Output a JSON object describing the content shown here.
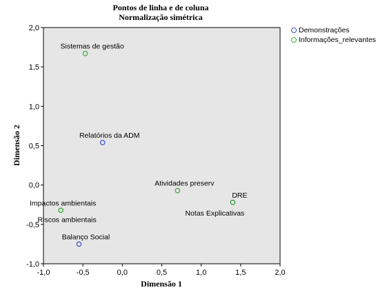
{
  "chart_data": {
    "type": "scatter",
    "title": "Pontos de linha  e de coluna",
    "subtitle": "Normalização simétrica",
    "xlabel": "Dimensão 1",
    "ylabel": "Dimensão 2",
    "xlim": [
      -1.0,
      2.0
    ],
    "ylim": [
      -1.0,
      2.0
    ],
    "xticks": [
      "-1,0",
      "-0,5",
      "0,0",
      "0,5",
      "1,0",
      "1,5",
      "2,0"
    ],
    "yticks": [
      "-1,0",
      "-0,5",
      "0,0",
      "0,5",
      "1,0",
      "1,5",
      "2,0"
    ],
    "legend_position": "top-right-outside",
    "grid": false,
    "series": [
      {
        "name": "Demonstrações",
        "color": "#3a4fc4",
        "points": [
          {
            "label": "Relatórios da ADM",
            "x": -0.25,
            "y": 0.54
          },
          {
            "label": "DRE",
            "x": 1.4,
            "y": -0.22
          },
          {
            "label": "Balanço Social",
            "x": -0.55,
            "y": -0.75
          }
        ]
      },
      {
        "name": "Informações_relevantes",
        "color": "#3aa63a",
        "points": [
          {
            "label": "Sistemas de gestão",
            "x": -0.47,
            "y": 1.67
          },
          {
            "label": "Atividades preserv",
            "x": 0.7,
            "y": -0.07
          },
          {
            "label": "Notas Explicativas",
            "x": 1.4,
            "y": -0.22
          },
          {
            "label": "Impactos ambientais",
            "x": -0.78,
            "y": -0.32
          },
          {
            "label": "Riscos ambientais",
            "x": -0.78,
            "y": -0.32
          }
        ]
      }
    ]
  }
}
